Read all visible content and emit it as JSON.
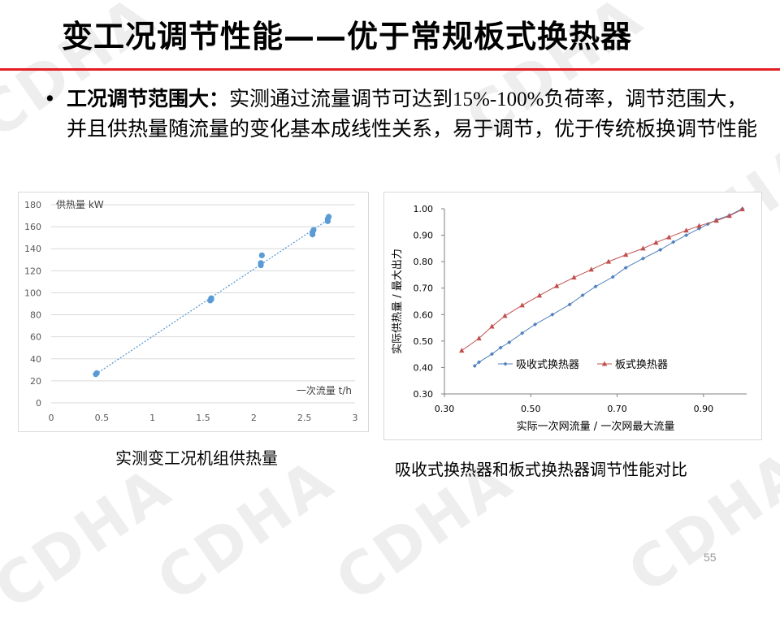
{
  "slide": {
    "title": "变工况调节性能——优于常规板式换热器",
    "bullet": {
      "marker": "•",
      "lead": "工况调节范围大：",
      "pre": "实测通过流量调节可达到",
      "range": "15%-100%",
      "post": "负荷率，调节范围大，并且供热量随流量的变化基本成线性关系，易于调节，优于传统板换调节性能"
    },
    "caption_left": "实测变工况机组供热量",
    "caption_right": "吸收式换热器和板式换热器调节性能对比",
    "page_number": "55",
    "watermark": "CDHA"
  },
  "chart_data": [
    {
      "type": "scatter",
      "ylabel": "供热量 kW",
      "xlabel": "一次流量 t/h",
      "xlim": [
        0,
        3
      ],
      "ylim": [
        0,
        180
      ],
      "xticks": [
        0,
        0.5,
        1,
        1.5,
        2,
        2.5,
        3
      ],
      "xtick_labels": [
        "0",
        "0.5",
        "1",
        "1.5",
        "2",
        "2.5",
        "3"
      ],
      "yticks": [
        0,
        20,
        40,
        60,
        80,
        100,
        120,
        140,
        160,
        180
      ],
      "ytick_labels": [
        "0",
        "20",
        "40",
        "60",
        "80",
        "100",
        "120",
        "140",
        "160",
        "180"
      ],
      "grid": true,
      "trendline": "linear",
      "points": [
        {
          "x": 0.44,
          "y": 26
        },
        {
          "x": 0.45,
          "y": 27
        },
        {
          "x": 1.57,
          "y": 93
        },
        {
          "x": 1.58,
          "y": 95
        },
        {
          "x": 1.58,
          "y": 94
        },
        {
          "x": 2.07,
          "y": 125
        },
        {
          "x": 2.07,
          "y": 127
        },
        {
          "x": 2.08,
          "y": 134
        },
        {
          "x": 2.58,
          "y": 153
        },
        {
          "x": 2.58,
          "y": 155
        },
        {
          "x": 2.59,
          "y": 157
        },
        {
          "x": 2.73,
          "y": 165
        },
        {
          "x": 2.73,
          "y": 167
        },
        {
          "x": 2.74,
          "y": 169
        }
      ],
      "colors": {
        "points": "#5b9bd5",
        "trendline": "#5b9bd5",
        "grid": "#d9d9d9"
      }
    },
    {
      "type": "line",
      "xlabel": "实际一次网流量 / 一次网最大流量",
      "ylabel": "实际供热量 / 最大出力",
      "xlim": [
        0.3,
        1.0
      ],
      "ylim": [
        0.3,
        1.0
      ],
      "xticks": [
        0.3,
        0.5,
        0.7,
        0.9
      ],
      "xtick_labels": [
        "0.30",
        "0.50",
        "0.70",
        "0.90"
      ],
      "yticks": [
        0.3,
        0.4,
        0.5,
        0.6,
        0.7,
        0.8,
        0.9,
        1.0
      ],
      "ytick_labels": [
        "0.30",
        "0.40",
        "0.50",
        "0.60",
        "0.70",
        "0.80",
        "0.90",
        "1.00"
      ],
      "grid": false,
      "legend": "center",
      "series": [
        {
          "name": "吸收式换热器",
          "marker": "diamond",
          "color": "#4f81bd",
          "x": [
            0.37,
            0.38,
            0.41,
            0.43,
            0.45,
            0.48,
            0.51,
            0.55,
            0.59,
            0.62,
            0.65,
            0.69,
            0.72,
            0.76,
            0.8,
            0.83,
            0.86,
            0.89,
            0.91,
            0.93,
            0.96,
            0.99
          ],
          "y": [
            0.406,
            0.42,
            0.451,
            0.475,
            0.495,
            0.53,
            0.563,
            0.6,
            0.638,
            0.673,
            0.706,
            0.742,
            0.777,
            0.812,
            0.845,
            0.874,
            0.9,
            0.925,
            0.942,
            0.958,
            0.975,
            1.0
          ]
        },
        {
          "name": "板式换热器",
          "marker": "triangle",
          "color": "#c0504d",
          "x": [
            0.34,
            0.38,
            0.41,
            0.44,
            0.48,
            0.52,
            0.56,
            0.6,
            0.64,
            0.68,
            0.72,
            0.76,
            0.79,
            0.82,
            0.86,
            0.89,
            0.93,
            0.96,
            0.99
          ],
          "y": [
            0.464,
            0.51,
            0.555,
            0.595,
            0.635,
            0.672,
            0.708,
            0.74,
            0.77,
            0.8,
            0.826,
            0.85,
            0.872,
            0.892,
            0.918,
            0.935,
            0.955,
            0.973,
            0.998
          ]
        }
      ]
    }
  ]
}
